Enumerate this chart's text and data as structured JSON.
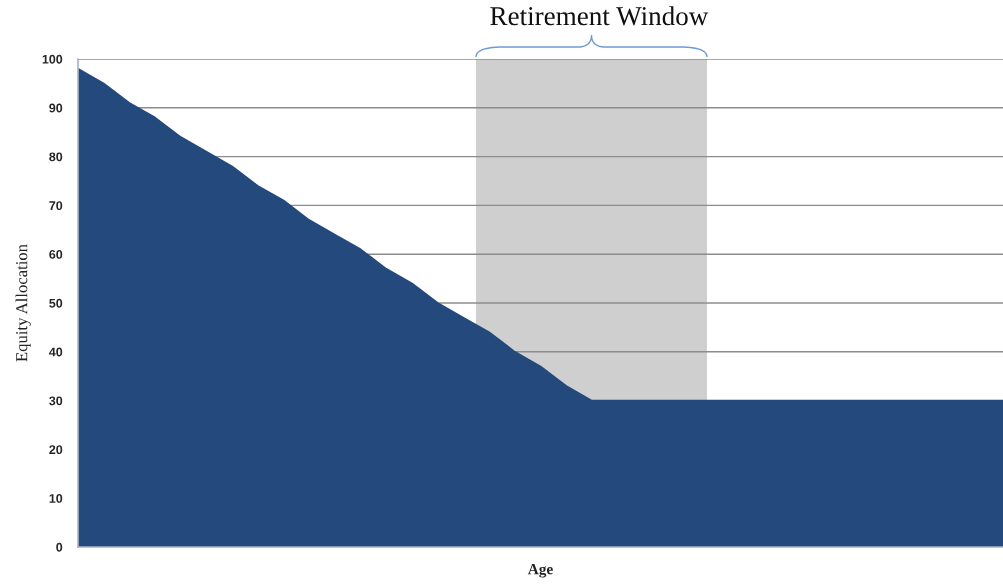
{
  "chart_data": {
    "type": "area",
    "categories": [
      null,
      null,
      null,
      null,
      null,
      null,
      null,
      null,
      null,
      null,
      null,
      null,
      null,
      null,
      null,
      null,
      null,
      null,
      null,
      null,
      null,
      null,
      null,
      null,
      null,
      null,
      null,
      null,
      null,
      null,
      null,
      null,
      null,
      null,
      null,
      null,
      null
    ],
    "values": [
      98,
      95,
      91,
      88,
      84,
      81,
      78,
      74,
      71,
      67,
      64,
      61,
      57,
      54,
      50,
      47,
      44,
      40,
      37,
      33,
      30,
      30,
      30,
      30,
      30,
      30,
      30,
      30,
      30,
      30,
      30,
      30,
      30,
      30,
      30,
      30,
      30
    ],
    "color": "#24497c",
    "ylim": [
      0,
      100
    ],
    "yticks": [
      0,
      10,
      20,
      30,
      40,
      50,
      60,
      70,
      80,
      90,
      100
    ],
    "grid": "y",
    "tick_labels": "y",
    "xlabel": "Age",
    "ylabel": "Equity Allocation",
    "annotations": [
      "Retirement Window"
    ]
  }
}
